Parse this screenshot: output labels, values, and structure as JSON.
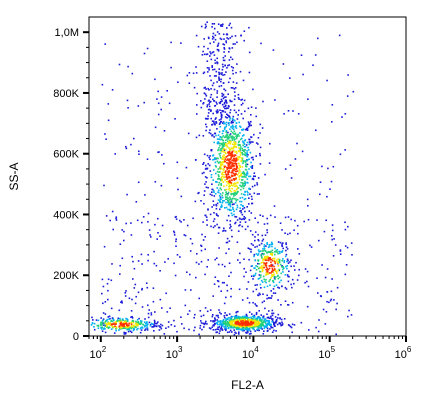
{
  "chart_data": {
    "type": "scatter",
    "style": "flow-cytometry density dot plot",
    "xlabel": "FL2-A",
    "ylabel": "SS-A",
    "x_scale": "log",
    "y_scale": "linear",
    "xlim": [
      70,
      1000000
    ],
    "ylim": [
      0,
      1050000
    ],
    "x_ticks": [
      {
        "value": 100,
        "base": "10",
        "exp": "2"
      },
      {
        "value": 1000,
        "base": "10",
        "exp": "3"
      },
      {
        "value": 10000,
        "base": "10",
        "exp": "4"
      },
      {
        "value": 100000,
        "base": "10",
        "exp": "5"
      },
      {
        "value": 1000000,
        "base": "10",
        "exp": "6"
      }
    ],
    "y_ticks": [
      {
        "value": 0,
        "label": "0"
      },
      {
        "value": 200000,
        "label": "200K"
      },
      {
        "value": 400000,
        "label": "400K"
      },
      {
        "value": 600000,
        "label": "600K"
      },
      {
        "value": 800000,
        "label": "800K"
      },
      {
        "value": 1000000,
        "label": "1,0M"
      }
    ],
    "grid": false,
    "legend": "none",
    "density_colors": [
      "#1c1cd8",
      "#00b0f0",
      "#22d07a",
      "#f2e600",
      "#ff3000"
    ],
    "populations": [
      {
        "center_x": 5000,
        "center_y": 560000,
        "spread_log_x": 0.16,
        "spread_y": 95000,
        "weight": 0.36
      },
      {
        "center_x": 16000,
        "center_y": 235000,
        "spread_log_x": 0.14,
        "spread_y": 45000,
        "weight": 0.12
      },
      {
        "center_x": 7500,
        "center_y": 45000,
        "spread_log_x": 0.22,
        "spread_y": 14000,
        "weight": 0.27
      },
      {
        "center_x": 180,
        "center_y": 40000,
        "spread_log_x": 0.25,
        "spread_y": 12000,
        "weight": 0.12
      }
    ]
  }
}
